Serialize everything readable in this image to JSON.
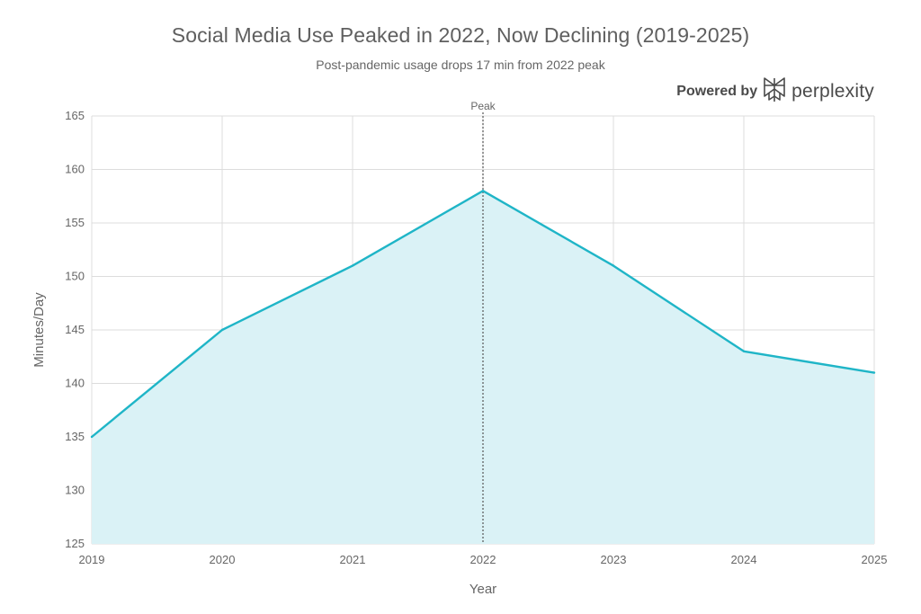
{
  "header": {
    "title": "Social Media Use Peaked in 2022, Now Declining (2019-2025)",
    "subtitle": "Post-pandemic usage drops 17 min from 2022 peak"
  },
  "brand": {
    "powered_label": "Powered by",
    "name": "perplexity",
    "icon": "perplexity-logo-icon"
  },
  "colors": {
    "line": "#1fb5c7",
    "area": "#daf2f6",
    "grid": "#dcdcdc",
    "peak_line": "#555555"
  },
  "chart_data": {
    "type": "area",
    "title": "Social Media Use Peaked in 2022, Now Declining (2019-2025)",
    "subtitle": "Post-pandemic usage drops 17 min from 2022 peak",
    "xlabel": "Year",
    "ylabel": "Minutes/Day",
    "x": [
      "2019",
      "2020",
      "2021",
      "2022",
      "2023",
      "2024",
      "2025"
    ],
    "values": [
      135,
      145,
      151,
      158,
      151,
      143,
      141
    ],
    "ylim": [
      125,
      165
    ],
    "yticks": [
      125,
      130,
      135,
      140,
      145,
      150,
      155,
      160,
      165
    ],
    "grid": true,
    "annotations": [
      {
        "text": "Peak",
        "x": "2022"
      }
    ]
  }
}
